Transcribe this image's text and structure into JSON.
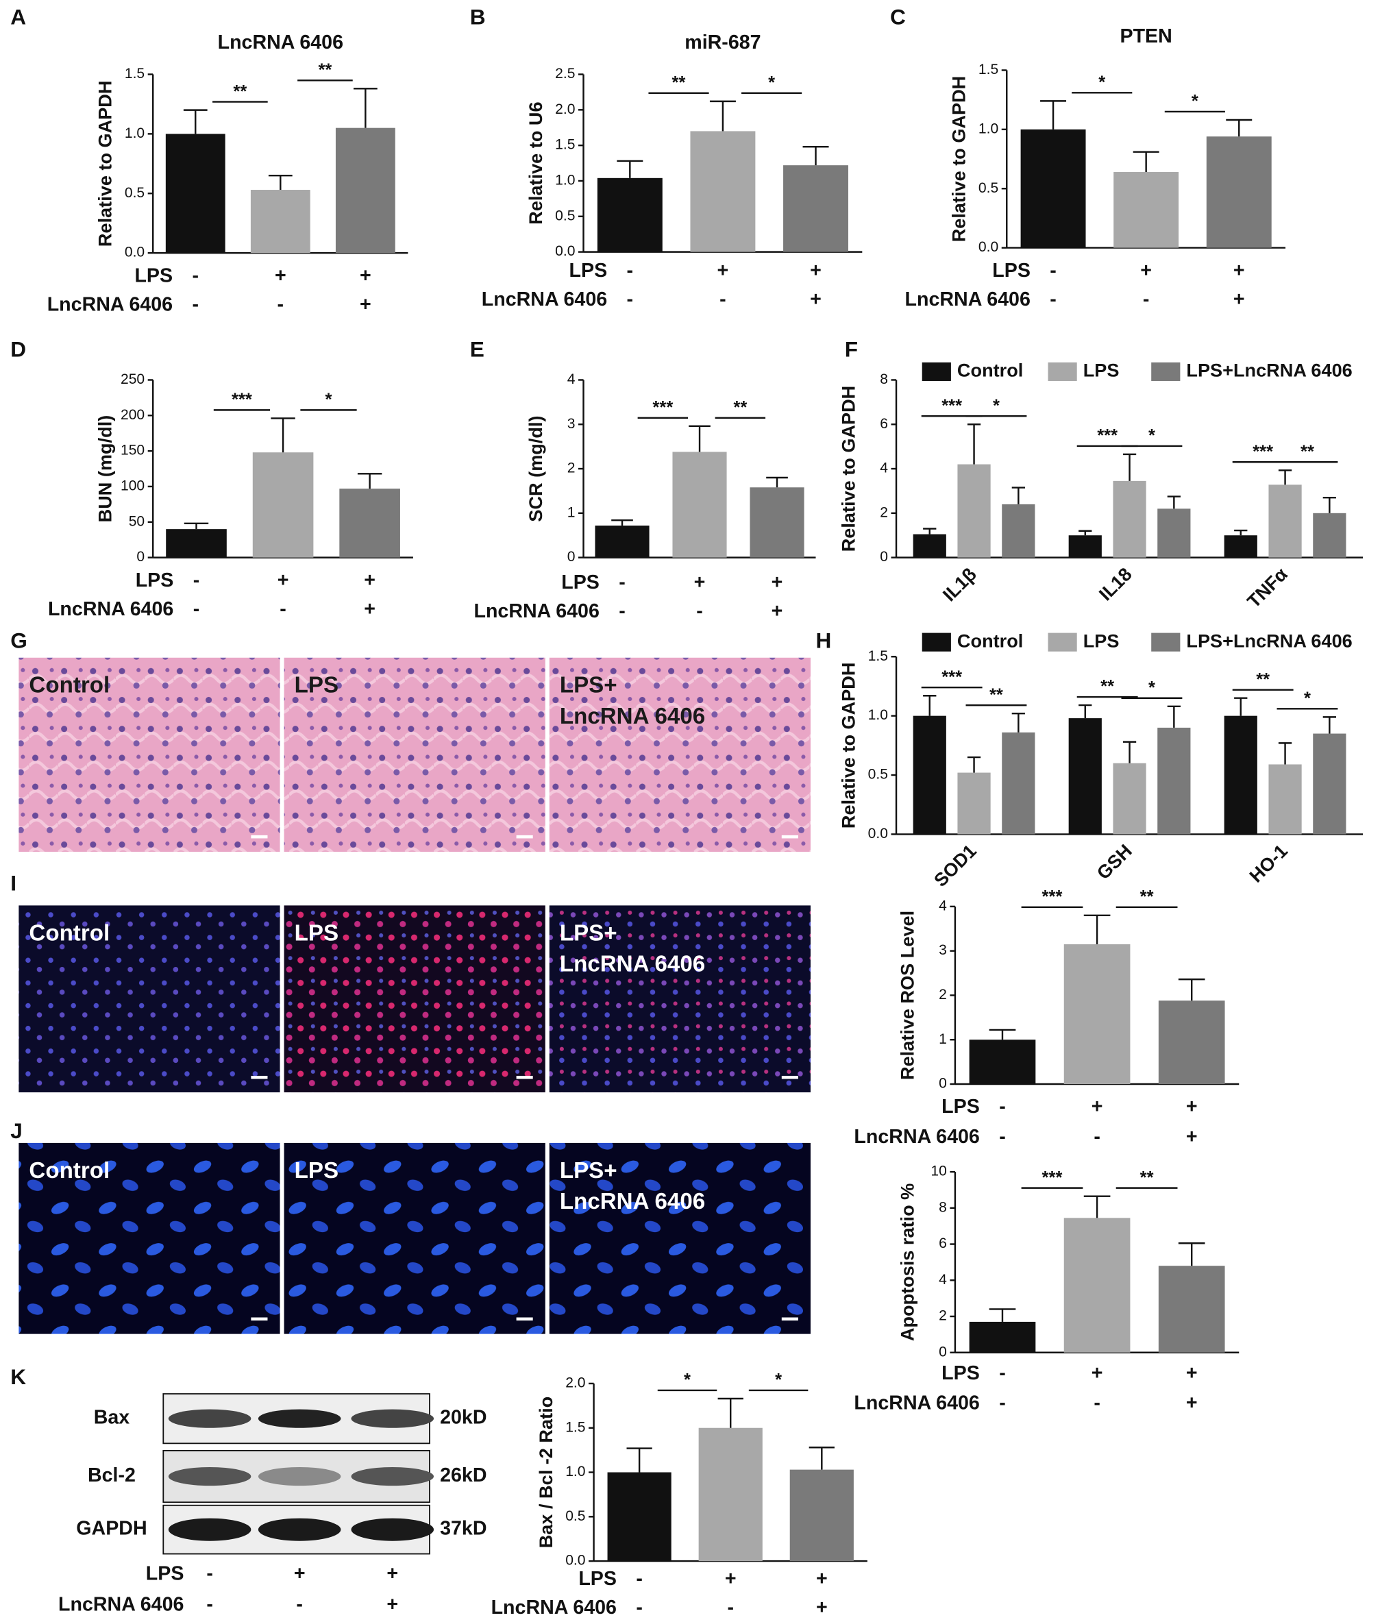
{
  "chart_data": [
    {
      "type": "bar",
      "panel": "A",
      "title": "LncRNA 6406",
      "ylabel": "Relative to GAPDH",
      "values": [
        1.0,
        0.53,
        1.05
      ],
      "errors": [
        0.2,
        0.12,
        0.33
      ],
      "colors": [
        "#111111",
        "#a8a8a8",
        "#7a7a7a"
      ],
      "ylim": [
        0,
        1.5
      ],
      "yticks": [
        {
          "value": 0,
          "label": "0.0"
        },
        0.5,
        {
          "value": 1,
          "label": "1.0"
        },
        1.5
      ],
      "significance": [
        "**",
        "**"
      ],
      "conditions": [
        {
          "label": "LPS",
          "marks": [
            "-",
            "+",
            "+"
          ]
        },
        {
          "label": "LncRNA 6406",
          "marks": [
            "-",
            "-",
            "+"
          ]
        }
      ]
    },
    {
      "type": "bar",
      "panel": "B",
      "title": "miR-687",
      "ylabel": "Relative to U6",
      "values": [
        1.04,
        1.7,
        1.22
      ],
      "errors": [
        0.24,
        0.42,
        0.26
      ],
      "colors": [
        "#111111",
        "#a8a8a8",
        "#7a7a7a"
      ],
      "ylim": [
        0,
        2.5
      ],
      "yticks": [
        {
          "value": 0,
          "label": "0.0"
        },
        0.5,
        {
          "value": 1,
          "label": "1.0"
        },
        1.5,
        {
          "value": 2,
          "label": "2.0"
        },
        2.5
      ],
      "significance": [
        "**",
        "*"
      ],
      "conditions": [
        {
          "label": "LPS",
          "marks": [
            "-",
            "+",
            "+"
          ]
        },
        {
          "label": "LncRNA 6406",
          "marks": [
            "-",
            "-",
            "+"
          ]
        }
      ]
    },
    {
      "type": "bar",
      "panel": "C",
      "title": "PTEN",
      "ylabel": "Relative to GAPDH",
      "values": [
        1.0,
        0.64,
        0.94
      ],
      "errors": [
        0.24,
        0.17,
        0.14
      ],
      "colors": [
        "#111111",
        "#a8a8a8",
        "#7a7a7a"
      ],
      "ylim": [
        0,
        1.5
      ],
      "yticks": [
        {
          "value": 0,
          "label": "0.0"
        },
        0.5,
        {
          "value": 1,
          "label": "1.0"
        },
        1.5
      ],
      "significance": [
        "*",
        "*"
      ],
      "conditions": [
        {
          "label": "LPS",
          "marks": [
            "-",
            "+",
            "+"
          ]
        },
        {
          "label": "LncRNA 6406",
          "marks": [
            "-",
            "-",
            "+"
          ]
        }
      ]
    },
    {
      "type": "bar",
      "panel": "D",
      "ylabel": "BUN (mg/dl)",
      "values": [
        40,
        148,
        97
      ],
      "errors": [
        8,
        48,
        21
      ],
      "colors": [
        "#111111",
        "#a8a8a8",
        "#7a7a7a"
      ],
      "ylim": [
        0,
        250
      ],
      "yticks": [
        0,
        50,
        100,
        150,
        200,
        250
      ],
      "significance": [
        "***",
        "*"
      ],
      "conditions": [
        {
          "label": "LPS",
          "marks": [
            "-",
            "+",
            "+"
          ]
        },
        {
          "label": "LncRNA 6406",
          "marks": [
            "-",
            "-",
            "+"
          ]
        }
      ]
    },
    {
      "type": "bar",
      "panel": "E",
      "ylabel": "SCR (mg/dl)",
      "values": [
        0.72,
        2.38,
        1.58
      ],
      "errors": [
        0.12,
        0.58,
        0.22
      ],
      "colors": [
        "#111111",
        "#a8a8a8",
        "#7a7a7a"
      ],
      "ylim": [
        0,
        4
      ],
      "yticks": [
        0,
        1,
        2,
        3,
        4
      ],
      "significance": [
        "***",
        "**"
      ],
      "conditions": [
        {
          "label": "LPS",
          "marks": [
            "-",
            "+",
            "+"
          ]
        },
        {
          "label": "LncRNA 6406",
          "marks": [
            "-",
            "-",
            "+"
          ]
        }
      ]
    },
    {
      "type": "grouped_bar",
      "panel": "F",
      "ylabel": "Relative to GAPDH",
      "categories": [
        "IL1β",
        "IL18",
        "TNFα"
      ],
      "series": [
        {
          "name": "Control",
          "color": "#111111",
          "values": [
            1.05,
            1.0,
            1.0
          ],
          "errors": [
            0.25,
            0.2,
            0.22
          ]
        },
        {
          "name": "LPS",
          "color": "#a8a8a8",
          "values": [
            4.2,
            3.45,
            3.28
          ],
          "errors": [
            1.8,
            1.2,
            0.65
          ]
        },
        {
          "name": "LPS+LncRNA 6406",
          "color": "#7a7a7a",
          "values": [
            2.4,
            2.2,
            2.0
          ],
          "errors": [
            0.75,
            0.55,
            0.7
          ]
        }
      ],
      "ylim": [
        0,
        8
      ],
      "yticks": [
        0,
        2,
        4,
        6,
        8
      ],
      "significance": [
        [
          "***",
          "*"
        ],
        [
          "***",
          "*"
        ],
        [
          "***",
          "**"
        ]
      ]
    },
    {
      "type": "grouped_bar",
      "panel": "H",
      "ylabel": "Relative to GAPDH",
      "categories": [
        "SOD1",
        "GSH",
        "HO-1"
      ],
      "series": [
        {
          "name": "Control",
          "color": "#111111",
          "values": [
            1.0,
            0.98,
            1.0
          ],
          "errors": [
            0.17,
            0.11,
            0.15
          ]
        },
        {
          "name": "LPS",
          "color": "#a8a8a8",
          "values": [
            0.52,
            0.6,
            0.59
          ],
          "errors": [
            0.13,
            0.18,
            0.18
          ]
        },
        {
          "name": "LPS+LncRNA 6406",
          "color": "#7a7a7a",
          "values": [
            0.86,
            0.9,
            0.85
          ],
          "errors": [
            0.16,
            0.18,
            0.14
          ]
        }
      ],
      "ylim": [
        0,
        1.5
      ],
      "yticks": [
        {
          "value": 0,
          "label": "0.0"
        },
        0.5,
        {
          "value": 1,
          "label": "1.0"
        },
        1.5
      ],
      "significance": [
        [
          "***",
          "**"
        ],
        [
          "**",
          "*"
        ],
        [
          "**",
          "*"
        ]
      ]
    },
    {
      "type": "bar",
      "ylabel": "Relative ROS Level",
      "values": [
        1.0,
        3.15,
        1.88
      ],
      "errors": [
        0.22,
        0.65,
        0.48
      ],
      "colors": [
        "#111111",
        "#a8a8a8",
        "#7a7a7a"
      ],
      "ylim": [
        0,
        4
      ],
      "yticks": [
        0,
        1,
        2,
        3,
        4
      ],
      "significance": [
        "***",
        "**"
      ],
      "conditions": [
        {
          "label": "LPS",
          "marks": [
            "-",
            "+",
            "+"
          ]
        },
        {
          "label": "LncRNA 6406",
          "marks": [
            "-",
            "-",
            "+"
          ]
        }
      ]
    },
    {
      "type": "bar",
      "ylabel": "Apoptosis ratio %",
      "values": [
        1.7,
        7.45,
        4.8
      ],
      "errors": [
        0.7,
        1.2,
        1.25
      ],
      "colors": [
        "#111111",
        "#a8a8a8",
        "#7a7a7a"
      ],
      "ylim": [
        0,
        10
      ],
      "yticks": [
        0,
        2,
        4,
        6,
        8,
        10
      ],
      "significance": [
        "***",
        "**"
      ],
      "conditions": [
        {
          "label": "LPS",
          "marks": [
            "-",
            "+",
            "+"
          ]
        },
        {
          "label": "LncRNA 6406",
          "marks": [
            "-",
            "-",
            "+"
          ]
        }
      ]
    },
    {
      "type": "bar",
      "ylabel": "Bax / Bcl -2 Ratio",
      "values": [
        1.0,
        1.5,
        1.03
      ],
      "errors": [
        0.27,
        0.33,
        0.25
      ],
      "colors": [
        "#111111",
        "#a8a8a8",
        "#7a7a7a"
      ],
      "ylim": [
        0,
        2
      ],
      "yticks": [
        {
          "value": 0,
          "label": "0.0"
        },
        0.5,
        {
          "value": 1,
          "label": "1.0"
        },
        1.5,
        {
          "value": 2,
          "label": "2.0"
        }
      ],
      "significance": [
        "*",
        "*"
      ],
      "conditions": [
        {
          "label": "LPS",
          "marks": [
            "-",
            "+",
            "+"
          ]
        },
        {
          "label": "LncRNA 6406",
          "marks": [
            "-",
            "-",
            "+"
          ]
        }
      ]
    }
  ],
  "micrographs": [
    {
      "panel": "G",
      "images": [
        {
          "lines": [
            "Control"
          ]
        },
        {
          "lines": [
            "LPS"
          ]
        },
        {
          "lines": [
            "LPS+",
            "LncRNA 6406"
          ]
        }
      ]
    },
    {
      "panel": "I",
      "images": [
        {
          "lines": [
            "Control"
          ]
        },
        {
          "lines": [
            "LPS"
          ]
        },
        {
          "lines": [
            "LPS+",
            "LncRNA 6406"
          ]
        }
      ]
    },
    {
      "panel": "J",
      "images": [
        {
          "lines": [
            "Control"
          ]
        },
        {
          "lines": [
            "LPS"
          ]
        },
        {
          "lines": [
            "LPS+",
            "LncRNA 6406"
          ]
        }
      ]
    }
  ],
  "blot": {
    "panel": "K",
    "proteins": [
      "Bax",
      "Bcl-2",
      "GAPDH"
    ],
    "sizes": [
      "20kD",
      "26kD",
      "37kD"
    ],
    "conditions": [
      {
        "label": "LPS",
        "marks": [
          "-",
          "+",
          "+"
        ]
      },
      {
        "label": "LncRNA 6406",
        "marks": [
          "-",
          "-",
          "+"
        ]
      }
    ]
  }
}
